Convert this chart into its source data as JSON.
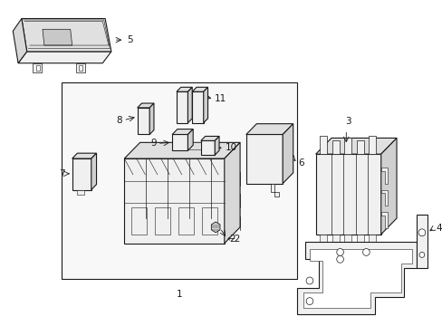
{
  "bg_color": "#ffffff",
  "line_color": "#1a1a1a",
  "fill_white": "#ffffff",
  "fill_light": "#f0f0f0",
  "fill_gray": "#e0e0e0",
  "box_fill": "#f2f2f2",
  "lw_main": 0.8,
  "lw_thin": 0.5,
  "lw_thick": 1.0,
  "font_size": 7.5,
  "arrow_lw": 0.6,
  "fig_w": 4.89,
  "fig_h": 3.6,
  "dpi": 100
}
